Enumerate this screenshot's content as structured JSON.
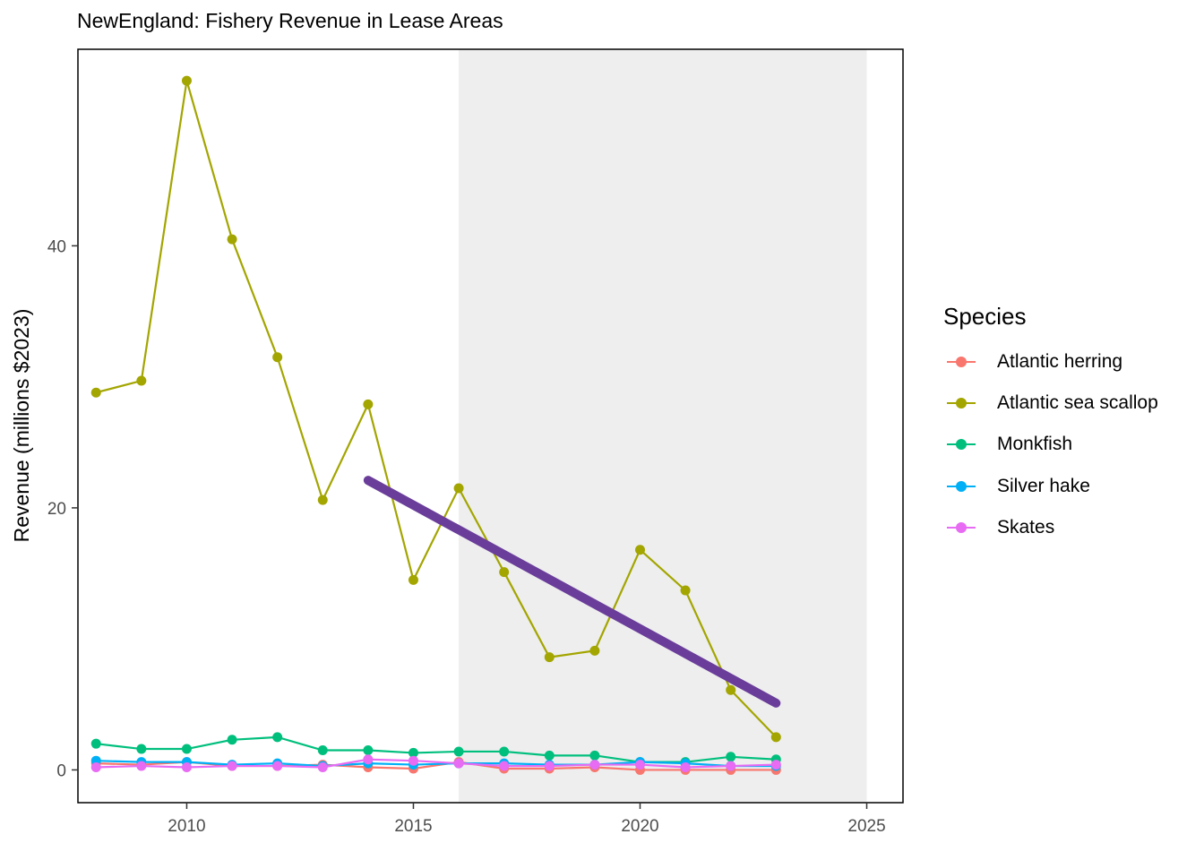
{
  "chart_data": {
    "type": "line",
    "title": "NewEngland: Fishery Revenue in Lease Areas",
    "xlabel": "",
    "ylabel": "Revenue (millions $2023)",
    "xlim": [
      2007.6,
      2025.8
    ],
    "ylim": [
      -2.5,
      55
    ],
    "x_ticks": [
      2010,
      2015,
      2020,
      2025
    ],
    "y_ticks": [
      0,
      20,
      40
    ],
    "grid": false,
    "legend_title": "Species",
    "legend_position": "right",
    "shaded_region": {
      "x_start": 2016,
      "x_end": 2025,
      "color": "#eeeeee"
    },
    "x": [
      2008,
      2009,
      2010,
      2011,
      2012,
      2013,
      2014,
      2015,
      2016,
      2017,
      2018,
      2019,
      2020,
      2021,
      2022,
      2023
    ],
    "series": [
      {
        "name": "Atlantic herring",
        "color": "#F8766D",
        "values": [
          0.5,
          0.4,
          0.6,
          0.3,
          0.3,
          0.4,
          0.2,
          0.1,
          0.6,
          0.1,
          0.1,
          0.2,
          0.0,
          0.0,
          0.0,
          0.0
        ]
      },
      {
        "name": "Atlantic sea scallop",
        "color": "#A3A500",
        "values": [
          28.8,
          29.7,
          52.6,
          40.5,
          31.5,
          20.6,
          27.9,
          14.5,
          21.5,
          15.1,
          8.6,
          9.1,
          16.8,
          13.7,
          6.1,
          2.5
        ]
      },
      {
        "name": "Monkfish",
        "color": "#00BF7D",
        "values": [
          2.0,
          1.6,
          1.6,
          2.3,
          2.5,
          1.5,
          1.5,
          1.3,
          1.4,
          1.4,
          1.1,
          1.1,
          0.6,
          0.6,
          1.0,
          0.8
        ]
      },
      {
        "name": "Silver hake",
        "color": "#00B0F6",
        "values": [
          0.7,
          0.6,
          0.6,
          0.4,
          0.5,
          0.3,
          0.5,
          0.4,
          0.5,
          0.5,
          0.4,
          0.4,
          0.6,
          0.5,
          0.3,
          0.3
        ]
      },
      {
        "name": "Skates",
        "color": "#E76BF3",
        "values": [
          0.2,
          0.3,
          0.2,
          0.3,
          0.3,
          0.2,
          0.8,
          0.7,
          0.5,
          0.3,
          0.3,
          0.4,
          0.4,
          0.2,
          0.3,
          0.4
        ]
      }
    ],
    "trend_line": {
      "color": "#6A3D9A",
      "x": [
        2014,
        2023
      ],
      "y": [
        22.1,
        5.1
      ]
    }
  }
}
